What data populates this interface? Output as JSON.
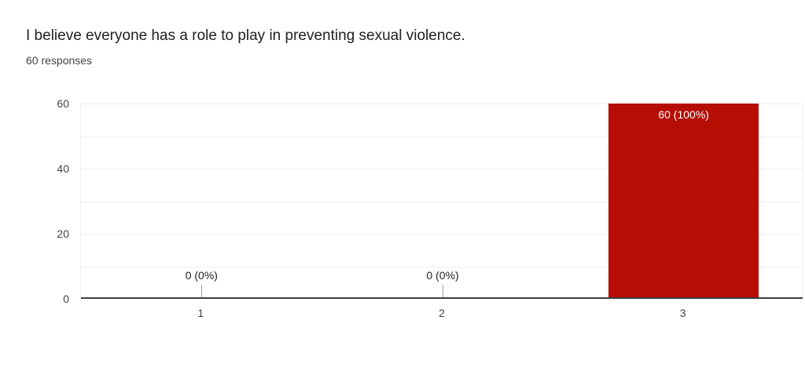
{
  "header": {
    "title": "I believe everyone has a role to play in preventing sexual violence.",
    "responses_label": "60 responses"
  },
  "chart_data": {
    "type": "bar",
    "title": "I believe everyone has a role to play in preventing sexual violence.",
    "subtitle": "60 responses",
    "categories": [
      "1",
      "2",
      "3"
    ],
    "values": [
      0,
      0,
      60
    ],
    "value_labels": [
      "0 (0%)",
      "0 (0%)",
      "60 (100%)"
    ],
    "xlabel": "",
    "ylabel": "",
    "ylim": [
      0,
      60
    ],
    "ytick_labels": [
      0,
      20,
      40,
      60
    ],
    "grid_step": 10,
    "grid": true,
    "legend": "none"
  },
  "colors": {
    "bar": "#b60d05",
    "bar_label": "#ffffff",
    "grid": "#f0f0f0",
    "axis_line": "#3d3d3d",
    "axis_text": "#444444",
    "title_text": "#212121",
    "subtitle_text": "#424242",
    "tick_stub": "#9e9e9e",
    "background": "#ffffff"
  }
}
